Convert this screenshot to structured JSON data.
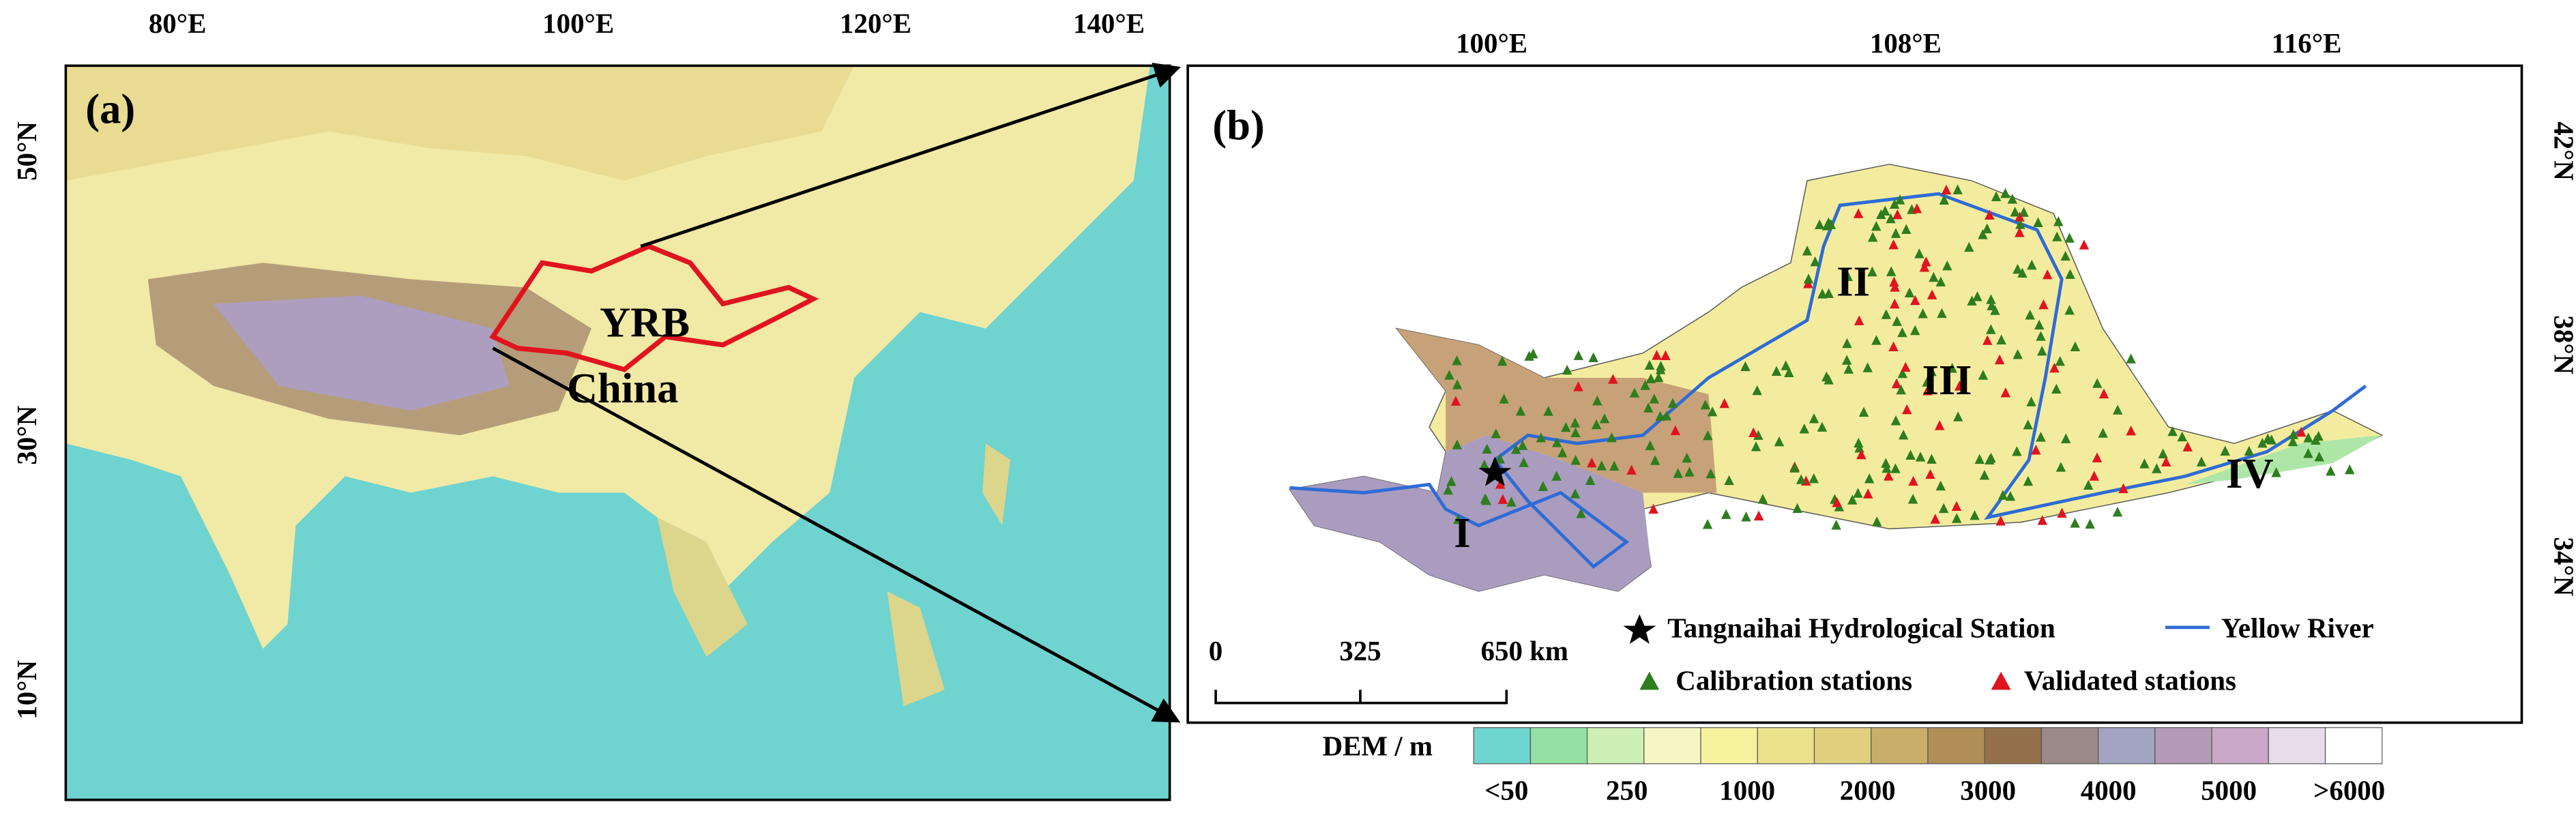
{
  "panel_a": {
    "label": "(a)",
    "x_labels": [
      "80°E",
      "100°E",
      "120°E",
      "140°E"
    ],
    "y_labels": [
      "50°N",
      "30°N",
      "10°N"
    ],
    "annotations": {
      "basin": "YRB",
      "country": "China"
    }
  },
  "panel_b": {
    "label": "(b)",
    "x_labels": [
      "100°E",
      "108°E",
      "116°E"
    ],
    "y_labels": [
      "42°N",
      "38°N",
      "34°N"
    ],
    "regions": [
      "I",
      "II",
      "III",
      "IV"
    ],
    "scale_bar": [
      "0",
      "325",
      "650 km"
    ],
    "legend": {
      "station": "Tangnaihai Hydrological Station",
      "river": "Yellow River",
      "calibration": "Calibration stations",
      "validated": "Validated stations"
    }
  },
  "dem_legend": {
    "title": "DEM / m",
    "labels": [
      "<50",
      "250",
      "1000",
      "2000",
      "3000",
      "4000",
      "5000",
      ">6000"
    ],
    "colors": [
      "#6fd6cf",
      "#92e0a2",
      "#cdeeb4",
      "#f6f6c4",
      "#f7f29e",
      "#ece28c",
      "#e0cf7c",
      "#c9ae6a",
      "#b08e56",
      "#94714a",
      "#9a8a86",
      "#a3a3c2",
      "#b59ab8",
      "#c8a8c6",
      "#e6dcec",
      "#ffffff"
    ]
  }
}
